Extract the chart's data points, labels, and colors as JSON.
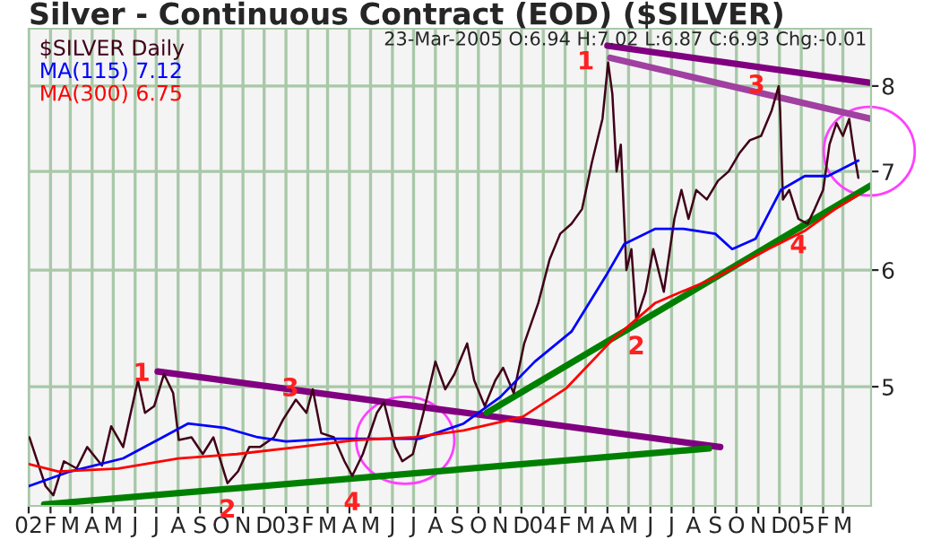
{
  "chart_data": {
    "type": "line",
    "title": "Silver - Continuous Contract (EOD) ($SILVER)",
    "annotations": [
      "23-Mar-2005 O:6.94 H:7.02 L:6.87 C:6.93 Chg:-0.01",
      {
        "text": "1",
        "x": "2002-07-12",
        "y": 5.1
      },
      {
        "text": "2",
        "x": "2002-10-10",
        "y": 4.3
      },
      {
        "text": "3",
        "x": "2003-02-08",
        "y": 4.98
      },
      {
        "text": "4",
        "x": "2003-04-05",
        "y": 4.35
      },
      {
        "text": "1",
        "x": "2004-04-02",
        "y": 8.3
      },
      {
        "text": "2",
        "x": "2004-05-12",
        "y": 5.55
      },
      {
        "text": "3",
        "x": "2004-11-30",
        "y": 8.0
      },
      {
        "text": "4",
        "x": "2004-12-28",
        "y": 6.5
      }
    ],
    "series": [
      {
        "name": "$SILVER Daily",
        "color": "#400018",
        "x": [
          "2002-01-02",
          "2002-01-25",
          "2002-02-05",
          "2002-02-20",
          "2002-03-10",
          "2002-03-25",
          "2002-04-15",
          "2002-04-28",
          "2002-05-15",
          "2002-06-05",
          "2002-06-15",
          "2002-06-28",
          "2002-07-12",
          "2002-07-25",
          "2002-08-02",
          "2002-08-20",
          "2002-09-05",
          "2002-09-20",
          "2002-10-10",
          "2002-10-25",
          "2002-11-10",
          "2002-11-25",
          "2002-12-15",
          "2002-12-28",
          "2003-01-15",
          "2003-01-30",
          "2003-02-08",
          "2003-02-20",
          "2003-03-10",
          "2003-03-25",
          "2003-04-05",
          "2003-04-20",
          "2003-05-10",
          "2003-05-20",
          "2003-06-05",
          "2003-06-15",
          "2003-06-30",
          "2003-07-15",
          "2003-08-01",
          "2003-08-15",
          "2003-08-28",
          "2003-09-15",
          "2003-09-25",
          "2003-10-10",
          "2003-10-25",
          "2003-11-05",
          "2003-11-20",
          "2003-12-05",
          "2003-12-25",
          "2004-01-10",
          "2004-01-25",
          "2004-02-10",
          "2004-02-25",
          "2004-03-10",
          "2004-03-25",
          "2004-04-02",
          "2004-04-08",
          "2004-04-14",
          "2004-04-20",
          "2004-04-28",
          "2004-05-05",
          "2004-05-12",
          "2004-05-25",
          "2004-06-05",
          "2004-06-20",
          "2004-07-05",
          "2004-07-15",
          "2004-07-25",
          "2004-08-05",
          "2004-08-20",
          "2004-09-05",
          "2004-09-20",
          "2004-10-05",
          "2004-10-20",
          "2004-11-05",
          "2004-11-20",
          "2004-11-30",
          "2004-12-02",
          "2004-12-06",
          "2004-12-15",
          "2004-12-28",
          "2005-01-10",
          "2005-01-20",
          "2005-02-01",
          "2005-02-10",
          "2005-02-20",
          "2005-03-01",
          "2005-03-10",
          "2005-03-17",
          "2005-03-23"
        ],
        "values": [
          4.62,
          4.28,
          4.22,
          4.45,
          4.4,
          4.55,
          4.42,
          4.7,
          4.55,
          5.05,
          4.8,
          4.85,
          5.1,
          4.95,
          4.6,
          4.62,
          4.5,
          4.62,
          4.3,
          4.38,
          4.55,
          4.55,
          4.62,
          4.75,
          4.9,
          4.8,
          4.98,
          4.65,
          4.62,
          4.45,
          4.35,
          4.5,
          4.8,
          4.88,
          4.55,
          4.45,
          4.5,
          4.8,
          5.2,
          4.98,
          5.1,
          5.35,
          5.05,
          4.85,
          5.05,
          5.15,
          4.95,
          5.35,
          5.7,
          6.1,
          6.35,
          6.45,
          6.6,
          7.1,
          7.6,
          8.3,
          7.9,
          7.0,
          7.3,
          6.0,
          6.2,
          5.55,
          5.8,
          6.2,
          5.8,
          6.5,
          6.8,
          6.5,
          6.8,
          6.7,
          6.9,
          7.0,
          7.2,
          7.35,
          7.4,
          7.7,
          8.0,
          7.7,
          6.7,
          6.8,
          6.5,
          6.45,
          6.6,
          6.8,
          7.3,
          7.55,
          7.4,
          7.6,
          7.2,
          6.93
        ]
      },
      {
        "name": "MA(115) 7.12",
        "color": "#0000ff",
        "x": [
          "2002-01-01",
          "2002-03-01",
          "2002-05-15",
          "2002-07-10",
          "2002-08-15",
          "2002-10-05",
          "2002-11-22",
          "2003-01-01",
          "2003-03-05",
          "2003-05-01",
          "2003-07-10",
          "2003-09-10",
          "2003-11-01",
          "2003-12-20",
          "2004-02-10",
          "2004-04-01",
          "2004-04-25",
          "2004-06-08",
          "2004-07-18",
          "2004-09-01",
          "2004-09-25",
          "2004-10-28",
          "2004-12-03",
          "2005-01-06",
          "2005-02-08",
          "2005-03-23"
        ],
        "values": [
          4.28,
          4.38,
          4.47,
          4.62,
          4.72,
          4.69,
          4.62,
          4.59,
          4.61,
          4.61,
          4.61,
          4.72,
          4.92,
          5.2,
          5.45,
          5.97,
          6.25,
          6.4,
          6.4,
          6.35,
          6.2,
          6.3,
          6.8,
          6.95,
          6.95,
          7.12
        ]
      },
      {
        "name": "MA(300) 6.75",
        "color": "#ff0000",
        "x": [
          "2002-01-01",
          "2002-02-12",
          "2002-05-08",
          "2002-08-01",
          "2002-10-23",
          "2003-01-18",
          "2003-04-10",
          "2003-07-03",
          "2003-09-10",
          "2003-12-03",
          "2004-02-03",
          "2004-04-08",
          "2004-06-08",
          "2004-09-01",
          "2004-11-15",
          "2005-01-06",
          "2005-02-18",
          "2005-03-23"
        ],
        "values": [
          4.43,
          4.38,
          4.4,
          4.47,
          4.5,
          4.55,
          4.6,
          4.62,
          4.67,
          4.77,
          4.99,
          5.38,
          5.7,
          5.93,
          6.2,
          6.38,
          6.6,
          6.75
        ]
      },
      {
        "color": "#800080",
        "x": [
          "2004-04-01",
          "2005-04-10"
        ],
        "values": [
          8.52,
          8.04
        ]
      },
      {
        "color": "#a040a0",
        "x": [
          "2004-04-05",
          "2005-04-10"
        ],
        "values": [
          8.36,
          7.6
        ]
      },
      {
        "color": "#800080",
        "x": [
          "2002-07-03",
          "2004-09-08"
        ],
        "values": [
          5.12,
          4.55
        ]
      },
      {
        "color": "#008000",
        "x": [
          "2002-01-23",
          "2004-08-23"
        ],
        "values": [
          4.16,
          4.54
        ]
      },
      {
        "color": "#008000",
        "x": [
          "2003-10-13",
          "2005-04-10"
        ],
        "values": [
          4.8,
          6.85
        ]
      }
    ],
    "log": "y",
    "xlim": [
      "2002-01-01",
      "2005-04-10"
    ],
    "ylim": [
      4.15,
      8.75
    ],
    "yticks": [
      5,
      6,
      7,
      8
    ],
    "xticks": [
      {
        "value": "2002-01-01",
        "label": "02"
      },
      {
        "value": "2002-02-01",
        "label": "F"
      },
      {
        "value": "2002-03-01",
        "label": "M"
      },
      {
        "value": "2002-04-01",
        "label": "A"
      },
      {
        "value": "2002-05-01",
        "label": "M"
      },
      {
        "value": "2002-06-01",
        "label": "J"
      },
      {
        "value": "2002-07-01",
        "label": "J"
      },
      {
        "value": "2002-08-01",
        "label": "A"
      },
      {
        "value": "2002-09-01",
        "label": "S"
      },
      {
        "value": "2002-10-01",
        "label": "O"
      },
      {
        "value": "2002-11-01",
        "label": "N"
      },
      {
        "value": "2002-12-01",
        "label": "D"
      },
      {
        "value": "2003-01-01",
        "label": "03"
      },
      {
        "value": "2003-02-01",
        "label": "F"
      },
      {
        "value": "2003-03-01",
        "label": "M"
      },
      {
        "value": "2003-04-01",
        "label": "A"
      },
      {
        "value": "2003-05-01",
        "label": "M"
      },
      {
        "value": "2003-06-01",
        "label": "J"
      },
      {
        "value": "2003-07-01",
        "label": "J"
      },
      {
        "value": "2003-08-01",
        "label": "A"
      },
      {
        "value": "2003-09-01",
        "label": "S"
      },
      {
        "value": "2003-10-01",
        "label": "O"
      },
      {
        "value": "2003-11-01",
        "label": "N"
      },
      {
        "value": "2003-12-01",
        "label": "D"
      },
      {
        "value": "2004-01-01",
        "label": "04"
      },
      {
        "value": "2004-02-01",
        "label": "F"
      },
      {
        "value": "2004-03-01",
        "label": "M"
      },
      {
        "value": "2004-04-01",
        "label": "A"
      },
      {
        "value": "2004-05-01",
        "label": "M"
      },
      {
        "value": "2004-06-01",
        "label": "J"
      },
      {
        "value": "2004-07-01",
        "label": "J"
      },
      {
        "value": "2004-08-01",
        "label": "A"
      },
      {
        "value": "2004-09-01",
        "label": "S"
      },
      {
        "value": "2004-10-01",
        "label": "O"
      },
      {
        "value": "2004-11-01",
        "label": "N"
      },
      {
        "value": "2004-12-01",
        "label": "D"
      },
      {
        "value": "2005-01-01",
        "label": "05"
      },
      {
        "value": "2005-02-01",
        "label": "F"
      },
      {
        "value": "2005-03-01",
        "label": "M"
      }
    ],
    "grid": true,
    "legend": "top left"
  }
}
